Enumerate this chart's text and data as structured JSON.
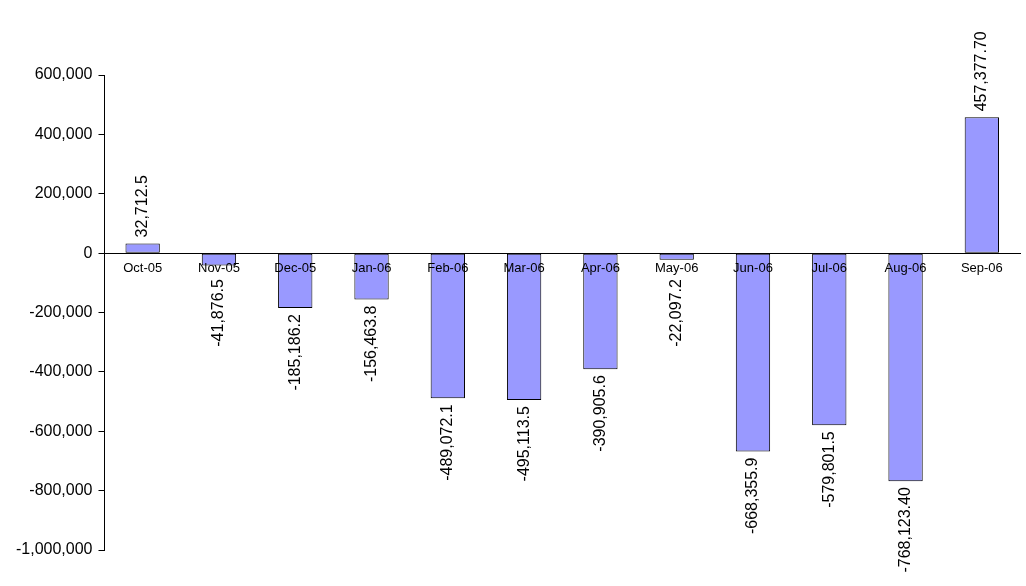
{
  "chart_data": {
    "type": "bar",
    "categories": [
      "Oct-05",
      "Nov-05",
      "Dec-05",
      "Jan-06",
      "Feb-06",
      "Mar-06",
      "Apr-06",
      "May-06",
      "Jun-06",
      "Jul-06",
      "Aug-06",
      "Sep-06"
    ],
    "values": [
      32712.5,
      -41876.5,
      -185186.2,
      -156463.8,
      -489072.1,
      -495113.5,
      -390905.6,
      -22097.2,
      -668355.9,
      -579801.5,
      -768123.4,
      457377.7
    ],
    "value_labels": [
      "32,712.5",
      "-41,876.5",
      "-185,186.2",
      "-156,463.8",
      "-489,072.1",
      "-495,113.5",
      "-390,905.6",
      "-22,097.2",
      "-668,355.9",
      "-579,801.5",
      "-768,123.40",
      "457,377.70"
    ],
    "color": "#9999ff",
    "ylim": [
      -1000000,
      600000
    ],
    "yticks": [
      {
        "value": -1000000,
        "label": "-1,000,000"
      },
      {
        "value": -800000,
        "label": "-800,000"
      },
      {
        "value": -600000,
        "label": "-600,000"
      },
      {
        "value": -400000,
        "label": "-400,000"
      },
      {
        "value": -200000,
        "label": "-200,000"
      },
      0,
      {
        "value": 200000,
        "label": "200,000"
      },
      {
        "value": 400000,
        "label": "400,000"
      },
      {
        "value": 600000,
        "label": "600,000"
      }
    ],
    "grid": false,
    "legend": false
  }
}
